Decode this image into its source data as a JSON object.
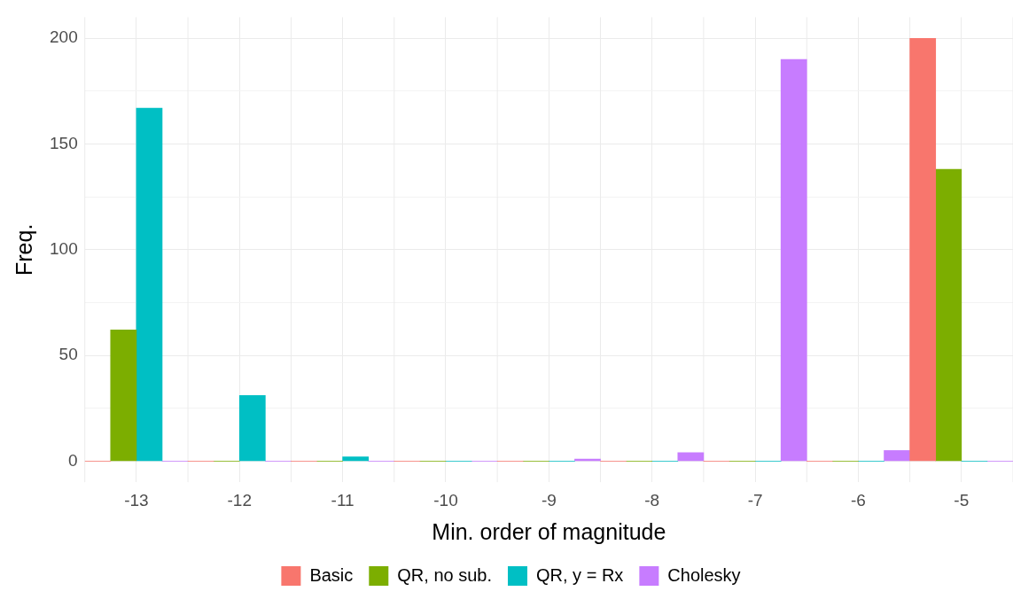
{
  "chart_data": {
    "type": "bar",
    "xlabel": "Min. order of magnitude",
    "ylabel": "Freq.",
    "categories": [
      "-13",
      "-12",
      "-11",
      "-10",
      "-9",
      "-8",
      "-7",
      "-6",
      "-5"
    ],
    "series": [
      {
        "name": "Basic",
        "color": "#f8766d",
        "values": [
          0,
          0,
          0,
          0,
          0,
          0,
          0,
          0,
          200
        ]
      },
      {
        "name": "QR, no sub.",
        "color": "#7cae00",
        "values": [
          62,
          0,
          0,
          0,
          0,
          0,
          0,
          0,
          138
        ]
      },
      {
        "name": "QR, y = Rx",
        "color": "#00bfc4",
        "values": [
          167,
          31,
          2,
          0,
          0,
          0,
          0,
          0,
          0
        ]
      },
      {
        "name": "Cholesky",
        "color": "#c77cff",
        "values": [
          0,
          0,
          0,
          0,
          1,
          4,
          190,
          5,
          0
        ]
      }
    ],
    "ylim": [
      -10,
      210
    ],
    "yticks": [
      0,
      {
        "value": 25,
        "label": null
      },
      50,
      {
        "value": 75,
        "label": null
      },
      100,
      {
        "value": 125,
        "label": null
      },
      150,
      {
        "value": 175,
        "label": null
      },
      200
    ],
    "grid": true,
    "legend": "bottom"
  }
}
